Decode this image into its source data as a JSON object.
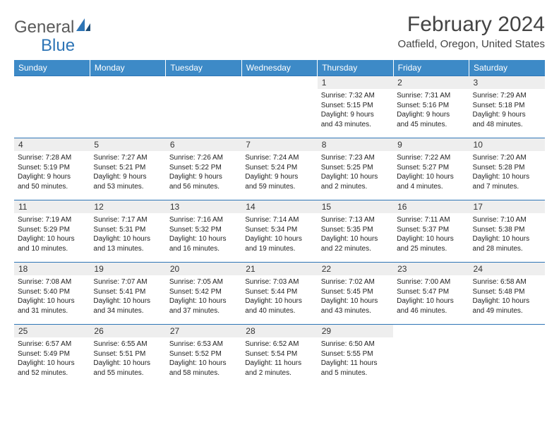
{
  "logo": {
    "text1": "General",
    "text2": "Blue"
  },
  "title": "February 2024",
  "location": "Oatfield, Oregon, United States",
  "colors": {
    "header_bg": "#3d8ac7",
    "header_text": "#ffffff",
    "row_border": "#2e75b6",
    "daynum_bg": "#eeeeee",
    "logo_blue": "#2e75b6",
    "logo_gray": "#5a5a5a"
  },
  "weekdays": [
    "Sunday",
    "Monday",
    "Tuesday",
    "Wednesday",
    "Thursday",
    "Friday",
    "Saturday"
  ],
  "weeks": [
    [
      null,
      null,
      null,
      null,
      {
        "n": "1",
        "sunrise": "7:32 AM",
        "sunset": "5:15 PM",
        "dl1": "Daylight: 9 hours",
        "dl2": "and 43 minutes."
      },
      {
        "n": "2",
        "sunrise": "7:31 AM",
        "sunset": "5:16 PM",
        "dl1": "Daylight: 9 hours",
        "dl2": "and 45 minutes."
      },
      {
        "n": "3",
        "sunrise": "7:29 AM",
        "sunset": "5:18 PM",
        "dl1": "Daylight: 9 hours",
        "dl2": "and 48 minutes."
      }
    ],
    [
      {
        "n": "4",
        "sunrise": "7:28 AM",
        "sunset": "5:19 PM",
        "dl1": "Daylight: 9 hours",
        "dl2": "and 50 minutes."
      },
      {
        "n": "5",
        "sunrise": "7:27 AM",
        "sunset": "5:21 PM",
        "dl1": "Daylight: 9 hours",
        "dl2": "and 53 minutes."
      },
      {
        "n": "6",
        "sunrise": "7:26 AM",
        "sunset": "5:22 PM",
        "dl1": "Daylight: 9 hours",
        "dl2": "and 56 minutes."
      },
      {
        "n": "7",
        "sunrise": "7:24 AM",
        "sunset": "5:24 PM",
        "dl1": "Daylight: 9 hours",
        "dl2": "and 59 minutes."
      },
      {
        "n": "8",
        "sunrise": "7:23 AM",
        "sunset": "5:25 PM",
        "dl1": "Daylight: 10 hours",
        "dl2": "and 2 minutes."
      },
      {
        "n": "9",
        "sunrise": "7:22 AM",
        "sunset": "5:27 PM",
        "dl1": "Daylight: 10 hours",
        "dl2": "and 4 minutes."
      },
      {
        "n": "10",
        "sunrise": "7:20 AM",
        "sunset": "5:28 PM",
        "dl1": "Daylight: 10 hours",
        "dl2": "and 7 minutes."
      }
    ],
    [
      {
        "n": "11",
        "sunrise": "7:19 AM",
        "sunset": "5:29 PM",
        "dl1": "Daylight: 10 hours",
        "dl2": "and 10 minutes."
      },
      {
        "n": "12",
        "sunrise": "7:17 AM",
        "sunset": "5:31 PM",
        "dl1": "Daylight: 10 hours",
        "dl2": "and 13 minutes."
      },
      {
        "n": "13",
        "sunrise": "7:16 AM",
        "sunset": "5:32 PM",
        "dl1": "Daylight: 10 hours",
        "dl2": "and 16 minutes."
      },
      {
        "n": "14",
        "sunrise": "7:14 AM",
        "sunset": "5:34 PM",
        "dl1": "Daylight: 10 hours",
        "dl2": "and 19 minutes."
      },
      {
        "n": "15",
        "sunrise": "7:13 AM",
        "sunset": "5:35 PM",
        "dl1": "Daylight: 10 hours",
        "dl2": "and 22 minutes."
      },
      {
        "n": "16",
        "sunrise": "7:11 AM",
        "sunset": "5:37 PM",
        "dl1": "Daylight: 10 hours",
        "dl2": "and 25 minutes."
      },
      {
        "n": "17",
        "sunrise": "7:10 AM",
        "sunset": "5:38 PM",
        "dl1": "Daylight: 10 hours",
        "dl2": "and 28 minutes."
      }
    ],
    [
      {
        "n": "18",
        "sunrise": "7:08 AM",
        "sunset": "5:40 PM",
        "dl1": "Daylight: 10 hours",
        "dl2": "and 31 minutes."
      },
      {
        "n": "19",
        "sunrise": "7:07 AM",
        "sunset": "5:41 PM",
        "dl1": "Daylight: 10 hours",
        "dl2": "and 34 minutes."
      },
      {
        "n": "20",
        "sunrise": "7:05 AM",
        "sunset": "5:42 PM",
        "dl1": "Daylight: 10 hours",
        "dl2": "and 37 minutes."
      },
      {
        "n": "21",
        "sunrise": "7:03 AM",
        "sunset": "5:44 PM",
        "dl1": "Daylight: 10 hours",
        "dl2": "and 40 minutes."
      },
      {
        "n": "22",
        "sunrise": "7:02 AM",
        "sunset": "5:45 PM",
        "dl1": "Daylight: 10 hours",
        "dl2": "and 43 minutes."
      },
      {
        "n": "23",
        "sunrise": "7:00 AM",
        "sunset": "5:47 PM",
        "dl1": "Daylight: 10 hours",
        "dl2": "and 46 minutes."
      },
      {
        "n": "24",
        "sunrise": "6:58 AM",
        "sunset": "5:48 PM",
        "dl1": "Daylight: 10 hours",
        "dl2": "and 49 minutes."
      }
    ],
    [
      {
        "n": "25",
        "sunrise": "6:57 AM",
        "sunset": "5:49 PM",
        "dl1": "Daylight: 10 hours",
        "dl2": "and 52 minutes."
      },
      {
        "n": "26",
        "sunrise": "6:55 AM",
        "sunset": "5:51 PM",
        "dl1": "Daylight: 10 hours",
        "dl2": "and 55 minutes."
      },
      {
        "n": "27",
        "sunrise": "6:53 AM",
        "sunset": "5:52 PM",
        "dl1": "Daylight: 10 hours",
        "dl2": "and 58 minutes."
      },
      {
        "n": "28",
        "sunrise": "6:52 AM",
        "sunset": "5:54 PM",
        "dl1": "Daylight: 11 hours",
        "dl2": "and 2 minutes."
      },
      {
        "n": "29",
        "sunrise": "6:50 AM",
        "sunset": "5:55 PM",
        "dl1": "Daylight: 11 hours",
        "dl2": "and 5 minutes."
      },
      null,
      null
    ]
  ],
  "labels": {
    "sunrise_prefix": "Sunrise: ",
    "sunset_prefix": "Sunset: "
  }
}
